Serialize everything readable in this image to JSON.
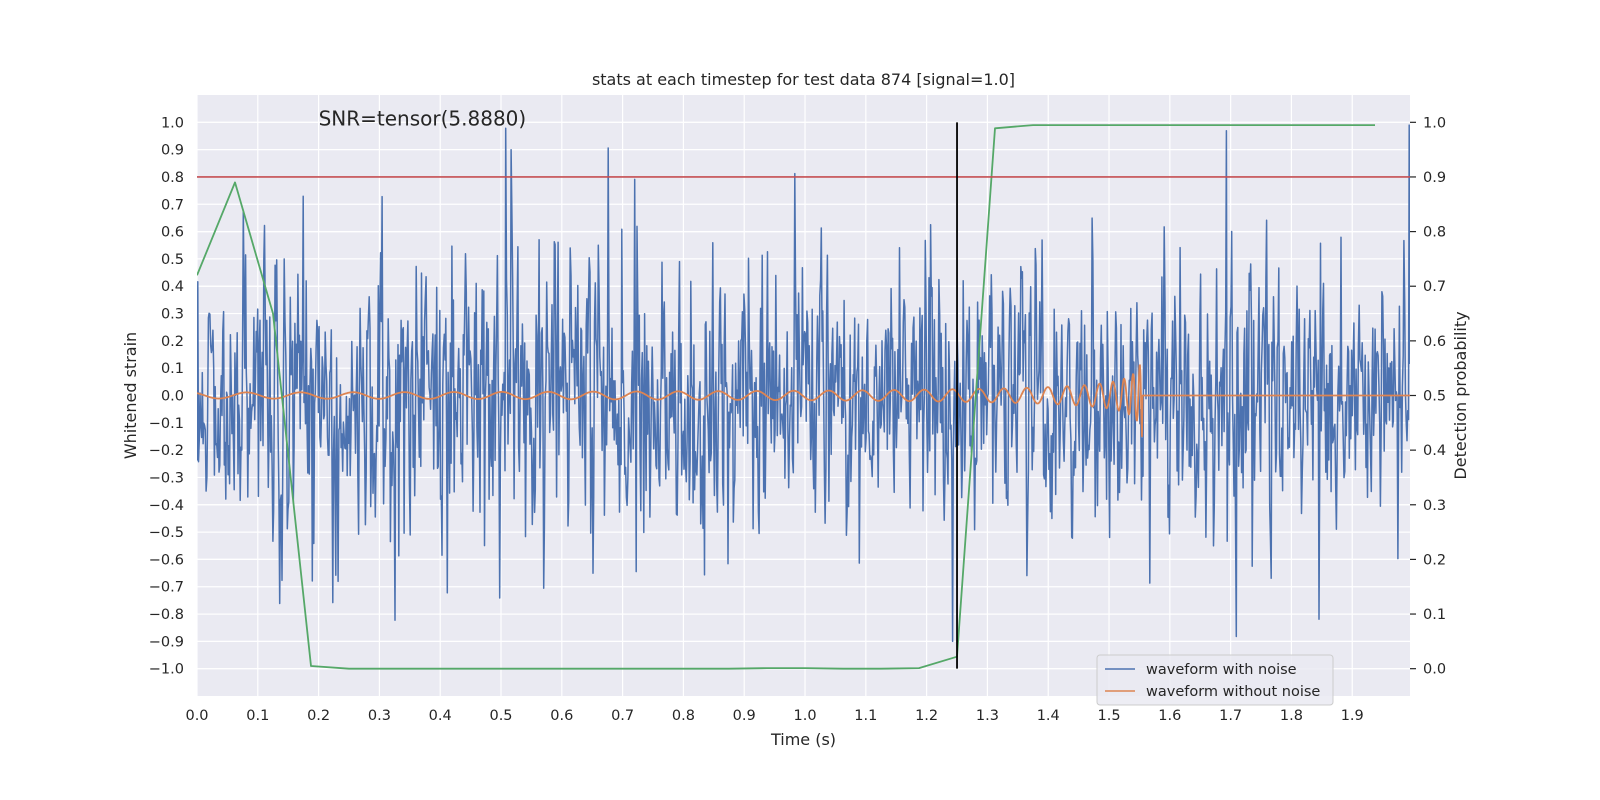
{
  "chart_data": {
    "type": "line",
    "title": "stats at each timestep for test data 874 [signal=1.0]",
    "xlabel": "Time (s)",
    "ylabel": "Whitened strain",
    "y2label": "Detection probability",
    "xlim": [
      0.0,
      1.995
    ],
    "ylim": [
      -1.1,
      1.1
    ],
    "y2lim": [
      -0.05,
      1.05
    ],
    "xticks": [
      "0.0",
      "0.1",
      "0.2",
      "0.3",
      "0.4",
      "0.5",
      "0.6",
      "0.7",
      "0.8",
      "0.9",
      "1.0",
      "1.1",
      "1.2",
      "1.3",
      "1.4",
      "1.5",
      "1.6",
      "1.7",
      "1.8",
      "1.9"
    ],
    "yticks": [
      "1.0",
      "0.9",
      "0.8",
      "0.7",
      "0.6",
      "0.5",
      "0.4",
      "0.3",
      "0.2",
      "0.1",
      "0.0",
      "−0.1",
      "−0.2",
      "−0.3",
      "−0.4",
      "−0.5",
      "−0.6",
      "−0.7",
      "−0.8",
      "−0.9",
      "−1.0"
    ],
    "y2ticks": [
      "1.0",
      "0.9",
      "0.8",
      "0.7",
      "0.6",
      "0.5",
      "0.4",
      "0.3",
      "0.2",
      "0.1",
      "0.0"
    ],
    "annotation": "SNR=tensor(5.8880)",
    "annotation_pos": {
      "x": 0.2,
      "y": 1.0
    },
    "threshold": {
      "y2": 0.9,
      "color": "#c44e52"
    },
    "event_line": {
      "x": 1.25,
      "y_range": [
        -1.0,
        1.0
      ],
      "color": "#000000"
    },
    "legend": {
      "location": "lower right",
      "entries": [
        "waveform with noise",
        "waveform without noise"
      ]
    },
    "series": [
      {
        "name": "waveform with noise",
        "axis": "left",
        "color": "#4c72b0",
        "kind": "noise",
        "seed": 874,
        "x_range": [
          0.0,
          1.995
        ],
        "samples": 1600
      },
      {
        "name": "waveform without noise",
        "axis": "left",
        "color": "#dd8452",
        "kind": "chirp",
        "x_range": [
          0.0,
          1.995
        ],
        "merger_time": 1.555
      },
      {
        "name": "detection probability",
        "axis": "right",
        "color": "#55a868",
        "x": [
          0.0,
          0.0625,
          0.125,
          0.1875,
          0.25,
          0.3125,
          0.375,
          0.4375,
          0.5,
          0.5625,
          0.625,
          0.6875,
          0.75,
          0.8125,
          0.875,
          0.9375,
          1.0,
          1.0625,
          1.125,
          1.1875,
          1.25,
          1.3125,
          1.375,
          1.4375,
          1.5,
          1.5625,
          1.625,
          1.6875,
          1.75,
          1.8125,
          1.875,
          1.9375
        ],
        "y": [
          0.72,
          0.89,
          0.65,
          0.005,
          0.0,
          0.0,
          0.0,
          0.0,
          0.0,
          0.0,
          0.0,
          0.0,
          0.0,
          0.0,
          0.0,
          0.001,
          0.001,
          0.0,
          0.0,
          0.001,
          0.022,
          0.989,
          0.995,
          0.995,
          0.995,
          0.995,
          0.995,
          0.995,
          0.995,
          0.995,
          0.995,
          0.995
        ]
      }
    ]
  }
}
